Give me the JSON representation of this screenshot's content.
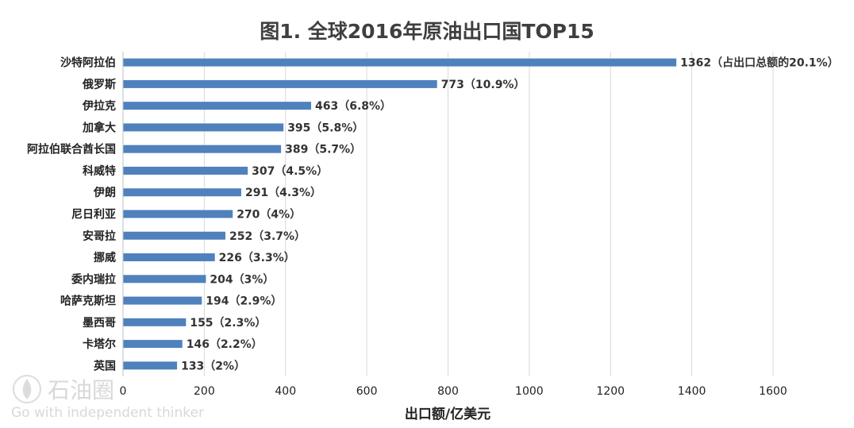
{
  "chart_data": {
    "type": "bar",
    "orientation": "horizontal",
    "title": "图1. 全球2016年原油出口国TOP15",
    "xlabel": "出口额/亿美元",
    "ylabel": "",
    "xlim": [
      0,
      1600
    ],
    "x_ticks": [
      "0",
      "200",
      "400",
      "600",
      "800",
      "1000",
      "1200",
      "1400",
      "1600"
    ],
    "grid": "vertical",
    "bar_color": "#4f81bd",
    "categories": [
      "沙特阿拉伯",
      "俄罗斯",
      "伊拉克",
      "加拿大",
      "阿拉伯联合酋长国",
      "科威特",
      "伊朗",
      "尼日利亚",
      "安哥拉",
      "挪威",
      "委内瑞拉",
      "哈萨克斯坦",
      "墨西哥",
      "卡塔尔",
      "英国"
    ],
    "values": [
      1362,
      773,
      463,
      395,
      389,
      307,
      291,
      270,
      252,
      226,
      204,
      194,
      155,
      146,
      133
    ],
    "data_labels": [
      "1362（占出口总额的20.1%）",
      "773（10.9%）",
      "463（6.8%）",
      "395（5.8%）",
      "389（5.7%）",
      "307（4.5%）",
      "291（4.3%）",
      "270（4%）",
      "252（3.7%）",
      "226（3.3%）",
      "204（3%）",
      "194（2.9%）",
      "155（2.3%）",
      "146（2.2%）",
      "133（2%）"
    ]
  },
  "watermark": {
    "brand": "石油圈",
    "slogan": "Go with independent thinker",
    "icon": "oil-drop-logo-icon"
  }
}
